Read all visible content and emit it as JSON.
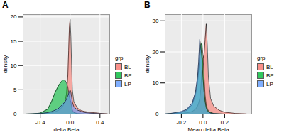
{
  "chart_data": [
    {
      "type": "area",
      "title": "A",
      "x_label": "delta.Beta",
      "y_label": "density",
      "legend": "right",
      "legend_title": "grp",
      "grid": true,
      "x": [
        -0.6,
        -0.5,
        -0.4,
        -0.3,
        -0.25,
        -0.2,
        -0.15,
        -0.1,
        -0.07,
        -0.05,
        -0.03,
        -0.02,
        -0.01,
        0,
        0.01,
        0.02,
        0.03,
        0.05,
        0.1,
        0.15,
        0.2,
        0.3,
        0.4,
        0.5
      ],
      "series": [
        {
          "name": "BL",
          "color": "#F8766D",
          "values": [
            0,
            0.05,
            0.1,
            0.2,
            0.3,
            0.5,
            0.8,
            1.5,
            2.5,
            4,
            8,
            13,
            18,
            19.5,
            16,
            10,
            5,
            2.5,
            1.2,
            0.7,
            0.5,
            0.3,
            0.15,
            0.05
          ]
        },
        {
          "name": "BP",
          "color": "#00BA38",
          "values": [
            0,
            0.05,
            0.2,
            1,
            2.5,
            4.5,
            6,
            7,
            7,
            6.5,
            5.5,
            4.5,
            3.5,
            3,
            2.5,
            1.5,
            0.8,
            0.3,
            0.1,
            0.05,
            0,
            0,
            0,
            0
          ]
        },
        {
          "name": "LP",
          "color": "#619CFF",
          "values": [
            0,
            0.02,
            0.1,
            0.3,
            0.5,
            0.8,
            1.2,
            2,
            2.5,
            3,
            3.8,
            4.2,
            4.6,
            5,
            4.5,
            3.5,
            2.5,
            1.5,
            0.8,
            0.5,
            0.3,
            0.15,
            0.05,
            0
          ]
        }
      ],
      "xlim": [
        -0.63,
        0.53
      ],
      "xticks": [
        {
          "value": -0.4,
          "label": "-0.4"
        },
        {
          "value": 0,
          "label": "0.0"
        },
        {
          "value": 0.4,
          "label": "0.4"
        }
      ],
      "ylim": [
        0,
        20.5
      ],
      "yticks": [
        0,
        5,
        10,
        15,
        20
      ]
    },
    {
      "type": "area",
      "title": "B",
      "x_label": "Mean.delta.Beta",
      "y_label": "density",
      "legend": "right",
      "legend_title": "grp",
      "grid": true,
      "x": [
        -0.35,
        -0.3,
        -0.2,
        -0.15,
        -0.1,
        -0.07,
        -0.05,
        -0.04,
        -0.03,
        -0.02,
        -0.01,
        0,
        0.01,
        0.02,
        0.03,
        0.04,
        0.05,
        0.07,
        0.1,
        0.15,
        0.2,
        0.3,
        0.4
      ],
      "series": [
        {
          "name": "BL",
          "color": "#F8766D",
          "values": [
            0,
            0.05,
            0.2,
            0.4,
            0.8,
            1.5,
            2.5,
            3.5,
            5,
            8,
            14,
            18,
            19,
            24,
            29,
            22,
            12,
            5,
            2.5,
            1.2,
            0.6,
            0.2,
            0.05
          ]
        },
        {
          "name": "BP",
          "color": "#00BA38",
          "values": [
            0,
            0.1,
            0.5,
            1.2,
            3,
            6,
            10,
            14,
            18,
            22,
            23,
            19,
            12,
            6,
            3,
            1.8,
            1,
            0.5,
            0.2,
            0.05,
            0,
            0,
            0
          ]
        },
        {
          "name": "LP",
          "color": "#619CFF",
          "values": [
            0.05,
            0.2,
            0.8,
            1.5,
            3.5,
            7,
            12,
            17,
            24,
            22,
            18,
            12,
            7,
            4,
            2,
            1.2,
            0.7,
            0.3,
            0.1,
            0.05,
            0,
            0,
            0
          ]
        }
      ],
      "xlim": [
        -0.35,
        0.45
      ],
      "xticks": [
        {
          "value": -0.2,
          "label": "-0.2"
        },
        {
          "value": 0,
          "label": "0.0"
        },
        {
          "value": 0.2,
          "label": "0.2"
        }
      ],
      "ylim": [
        0,
        32
      ],
      "yticks": [
        0,
        10,
        20,
        30
      ]
    }
  ]
}
